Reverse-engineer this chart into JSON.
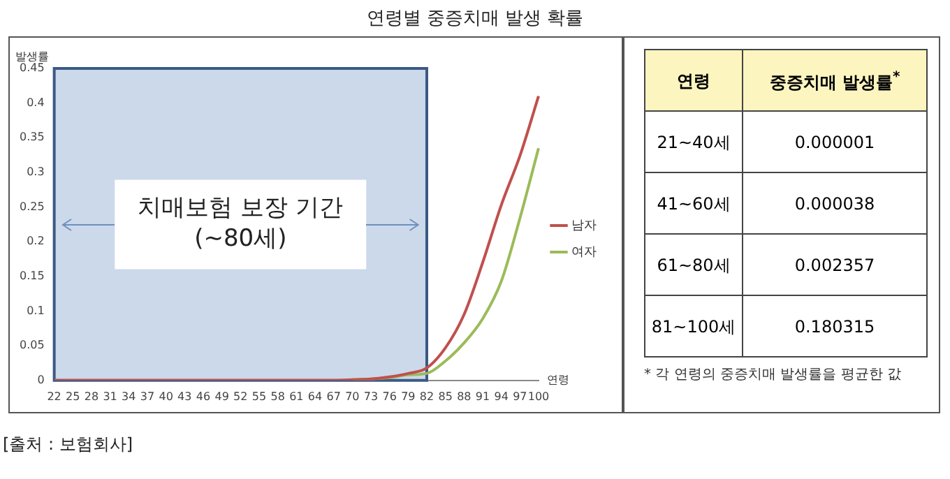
{
  "chart_data": [
    {
      "type": "line",
      "title": "연령별 중증치매 발생 확률",
      "ylabel": "발생률",
      "xlabel": "연령",
      "categories": [
        "22",
        "25",
        "28",
        "31",
        "34",
        "37",
        "40",
        "43",
        "46",
        "49",
        "52",
        "55",
        "58",
        "61",
        "64",
        "67",
        "70",
        "73",
        "76",
        "79",
        "82",
        "85",
        "88",
        "91",
        "94",
        "97",
        "100"
      ],
      "series": [
        {
          "name": "남자",
          "color": "#c0504d",
          "values": [
            0,
            0,
            0,
            0,
            0,
            0,
            0,
            0,
            0,
            0,
            0,
            0,
            0,
            0,
            0,
            0,
            0.001,
            0.002,
            0.005,
            0.01,
            0.018,
            0.047,
            0.095,
            0.17,
            0.253,
            0.324,
            0.41
          ]
        },
        {
          "name": "여자",
          "color": "#9bbb59",
          "values": [
            null,
            null,
            null,
            null,
            null,
            null,
            null,
            null,
            null,
            null,
            null,
            null,
            null,
            null,
            null,
            null,
            0.001,
            0.002,
            0.004,
            0.008,
            0.01,
            0.028,
            0.054,
            0.089,
            0.143,
            0.234,
            0.335
          ]
        }
      ],
      "ylim": [
        0,
        0.45
      ],
      "yticks": [
        0,
        0.05,
        0.1,
        0.15,
        0.2,
        0.25,
        0.3,
        0.35,
        0.4,
        0.45
      ],
      "grid": false,
      "legend": "right",
      "marker": "none",
      "line_style": "solid",
      "bands": [
        {
          "axis": "x",
          "from": "22",
          "to": "82",
          "label": "치매보험 보장 기간\n(~80세)",
          "color": "#ccd9ea"
        }
      ],
      "annotations": [
        "[출처 : 보험회사]"
      ]
    },
    {
      "type": "other",
      "xlabel": "연령",
      "ylabel": "중증치매 발생률$^{*}$",
      "categories": [
        "21~40세",
        "41~60세",
        "61~80세",
        "81~100세"
      ],
      "value_labels": [
        "0.000001",
        "0.000038",
        "0.002357",
        "0.180315"
      ],
      "annotations": [
        "* 각 연령의 중증치매 발생률을 평균한 값"
      ]
    }
  ]
}
